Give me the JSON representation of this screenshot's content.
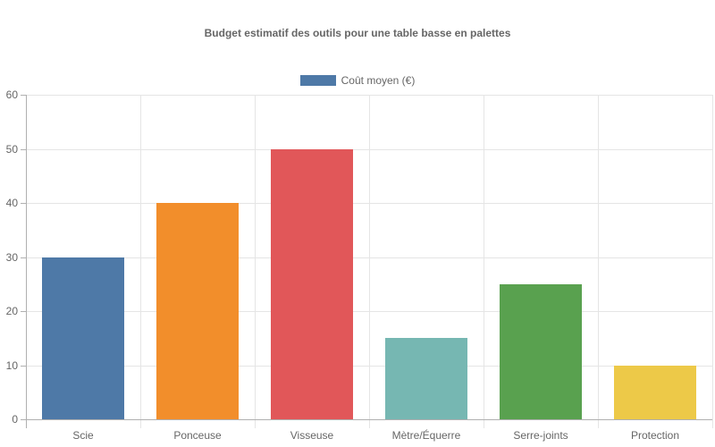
{
  "chart_data": {
    "type": "bar",
    "title": "Budget estimatif des outils pour une table basse en palettes",
    "categories": [
      "Scie",
      "Ponceuse",
      "Visseuse",
      "Mètre/Équerre",
      "Serre-joints",
      "Protection"
    ],
    "series": [
      {
        "name": "Coût moyen (€)",
        "values": [
          30,
          40,
          50,
          15,
          25,
          10
        ],
        "colors": [
          "#4e79a7",
          "#f28e2b",
          "#e15759",
          "#76b7b2",
          "#59a14f",
          "#edc948"
        ]
      }
    ],
    "xlabel": "",
    "ylabel": "",
    "ylim": [
      0,
      60
    ],
    "yticks": [
      "0",
      "10",
      "20",
      "30",
      "40",
      "50",
      "60"
    ],
    "grid": true,
    "legend_position": "top"
  },
  "legend": {
    "label": "Coût moyen (€)",
    "color": "#4e79a7"
  }
}
